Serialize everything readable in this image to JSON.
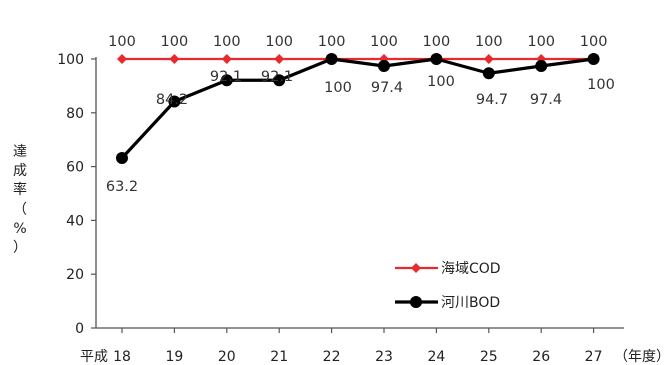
{
  "chart_data": {
    "type": "line",
    "title": "",
    "x_prefix": "平成",
    "x": [
      "18",
      "19",
      "20",
      "21",
      "22",
      "23",
      "24",
      "25",
      "26",
      "27"
    ],
    "x_unit": "（年度）",
    "ylabel": [
      "達",
      "成",
      "率",
      "（",
      "%",
      "）"
    ],
    "ylim": [
      0,
      100
    ],
    "yticks": [
      0,
      20,
      40,
      60,
      80,
      100
    ],
    "grid": false,
    "legend_position": "bottom-right",
    "series": [
      {
        "name": "海域COD",
        "color": "#e8292e",
        "values": [
          100,
          100,
          100,
          100,
          100,
          100,
          100,
          100,
          100,
          100
        ],
        "labels": [
          "100",
          "100",
          "100",
          "100",
          "100",
          "100",
          "100",
          "100",
          "100",
          "100"
        ]
      },
      {
        "name": "河川BOD",
        "color": "#000000",
        "values": [
          63.2,
          84.2,
          92.1,
          92.1,
          100,
          97.4,
          100,
          94.7,
          97.4,
          100
        ],
        "labels": [
          "63.2",
          "84.2",
          "92.1",
          "92.1",
          "100",
          "97.4",
          "100",
          "94.7",
          "97.4",
          "100"
        ]
      }
    ]
  }
}
